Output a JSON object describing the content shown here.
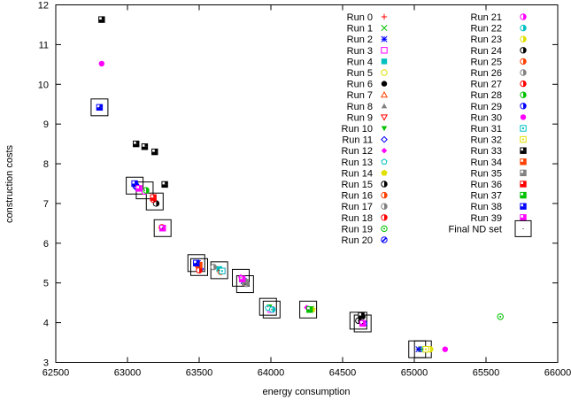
{
  "chart_data": {
    "type": "scatter",
    "title": "",
    "xlabel": "energy consumption",
    "ylabel": "construction costs",
    "xlim": [
      62500,
      66000
    ],
    "ylim": [
      3,
      12
    ],
    "grid": false,
    "legend_position": "top-right",
    "x_ticks": [
      "62500",
      "63000",
      "63500",
      "64000",
      "64500",
      "65000",
      "65500",
      "66000"
    ],
    "y_ticks": [
      "3",
      "4",
      "5",
      "6",
      "7",
      "8",
      "9",
      "10",
      "11",
      "12"
    ],
    "front": [
      [
        62805,
        9.42
      ],
      [
        63050,
        7.45
      ],
      [
        63120,
        7.33
      ],
      [
        63190,
        7.05
      ],
      [
        63245,
        6.38
      ],
      [
        63480,
        5.5
      ],
      [
        63500,
        5.4
      ],
      [
        63640,
        5.32
      ],
      [
        63790,
        5.13
      ],
      [
        63820,
        4.97
      ],
      [
        63980,
        4.4
      ],
      [
        64005,
        4.33
      ],
      [
        64260,
        4.33
      ],
      [
        64610,
        4.05
      ],
      [
        64640,
        3.98
      ],
      [
        65020,
        3.33
      ],
      [
        65060,
        3.33
      ]
    ],
    "series": [
      {
        "name": "Run 0",
        "color": "#ff0000",
        "marker": "plus",
        "points": [
          [
            63485,
            5.45
          ],
          [
            64620,
            4.0
          ],
          [
            65040,
            3.33
          ]
        ]
      },
      {
        "name": "Run 1",
        "color": "#00c000",
        "marker": "cross",
        "points": [
          [
            63500,
            5.4
          ],
          [
            64280,
            4.35
          ],
          [
            65050,
            3.33
          ]
        ]
      },
      {
        "name": "Run 2",
        "color": "#0000ff",
        "marker": "star",
        "points": [
          [
            63490,
            5.5
          ],
          [
            63810,
            5.05
          ],
          [
            65030,
            3.33
          ]
        ]
      },
      {
        "name": "Run 3",
        "color": "#ff00ff",
        "marker": "square-open",
        "points": [
          [
            63660,
            5.3
          ],
          [
            64000,
            4.33
          ]
        ]
      },
      {
        "name": "Run 4",
        "color": "#00c0c0",
        "marker": "square-filled",
        "points": [
          [
            63640,
            5.35
          ],
          [
            65070,
            3.33
          ]
        ]
      },
      {
        "name": "Run 5",
        "color": "#e0e000",
        "marker": "circle-open",
        "points": [
          [
            63800,
            5.1
          ],
          [
            65090,
            3.33
          ]
        ]
      },
      {
        "name": "Run 6",
        "color": "#000000",
        "marker": "circle-filled",
        "points": [
          [
            64640,
            4.15
          ]
        ]
      },
      {
        "name": "Run 7",
        "color": "#ff4000",
        "marker": "triangle-open",
        "points": [
          [
            63820,
            5.0
          ]
        ]
      },
      {
        "name": "Run 8",
        "color": "#808080",
        "marker": "triangle-filled",
        "points": [
          [
            64630,
            4.1
          ]
        ]
      },
      {
        "name": "Run 9",
        "color": "#ff0000",
        "marker": "triangle-down-open",
        "points": [
          [
            63480,
            5.45
          ]
        ]
      },
      {
        "name": "Run 10",
        "color": "#00c000",
        "marker": "triangle-down-filled",
        "points": [
          [
            63990,
            4.4
          ]
        ]
      },
      {
        "name": "Run 11",
        "color": "#0000ff",
        "marker": "diamond-open",
        "points": [
          [
            63060,
            7.4
          ],
          [
            63510,
            5.35
          ]
        ]
      },
      {
        "name": "Run 12",
        "color": "#ff00ff",
        "marker": "diamond-filled",
        "points": [
          [
            63790,
            5.15
          ],
          [
            64250,
            4.38
          ]
        ]
      },
      {
        "name": "Run 13",
        "color": "#00c0c0",
        "marker": "pentagon-open",
        "points": [
          [
            63980,
            4.37
          ]
        ]
      },
      {
        "name": "Run 14",
        "color": "#e0e000",
        "marker": "pentagon-filled",
        "points": [
          [
            64290,
            4.33
          ]
        ]
      },
      {
        "name": "Run 15",
        "color": "#000000",
        "marker": "half-circle",
        "points": [
          [
            64610,
            4.05
          ]
        ]
      },
      {
        "name": "Run 16",
        "color": "#ff4000",
        "marker": "half-circle",
        "points": [
          [
            63650,
            5.28
          ]
        ]
      },
      {
        "name": "Run 17",
        "color": "#808080",
        "marker": "half-circle",
        "points": [
          [
            63830,
            4.98
          ]
        ]
      },
      {
        "name": "Run 18",
        "color": "#ff0000",
        "marker": "half-circle",
        "points": [
          [
            63500,
            5.32
          ]
        ]
      },
      {
        "name": "Run 19",
        "color": "#00c000",
        "marker": "circle-dot",
        "points": [
          [
            65600,
            4.15
          ]
        ]
      },
      {
        "name": "Run 20",
        "color": "#0000ff",
        "marker": "circle-slash",
        "points": [
          [
            64650,
            3.98
          ]
        ]
      },
      {
        "name": "Run 21",
        "color": "#ff00ff",
        "marker": "half-circle",
        "points": [
          [
            63120,
            7.3
          ]
        ]
      },
      {
        "name": "Run 22",
        "color": "#00c0c0",
        "marker": "half-circle",
        "points": [
          [
            64010,
            4.33
          ]
        ]
      },
      {
        "name": "Run 23",
        "color": "#e0e000",
        "marker": "half-circle",
        "points": [
          [
            65110,
            3.33
          ]
        ]
      },
      {
        "name": "Run 24",
        "color": "#000000",
        "marker": "half-circle",
        "points": [
          [
            63200,
            7.0
          ]
        ]
      },
      {
        "name": "Run 25",
        "color": "#ff4000",
        "marker": "half-circle",
        "points": [
          [
            63240,
            6.4
          ]
        ]
      },
      {
        "name": "Run 26",
        "color": "#808080",
        "marker": "half-circle",
        "points": [
          [
            63600,
            5.4
          ]
        ]
      },
      {
        "name": "Run 27",
        "color": "#ff0000",
        "marker": "half-circle",
        "points": [
          [
            63180,
            7.1
          ]
        ]
      },
      {
        "name": "Run 28",
        "color": "#00c000",
        "marker": "half-circle",
        "points": [
          [
            63130,
            7.33
          ]
        ]
      },
      {
        "name": "Run 29",
        "color": "#0000ff",
        "marker": "half-circle",
        "points": [
          [
            63060,
            7.45
          ]
        ]
      },
      {
        "name": "Run 30",
        "color": "#ff00ff",
        "marker": "circle-filled",
        "points": [
          [
            65215,
            3.33
          ],
          [
            62820,
            10.52
          ]
        ]
      },
      {
        "name": "Run 31",
        "color": "#00c0c0",
        "marker": "square-dot",
        "points": [
          [
            63660,
            5.3
          ]
        ]
      },
      {
        "name": "Run 32",
        "color": "#e0e000",
        "marker": "square-dot",
        "points": [
          [
            65080,
            3.33
          ]
        ]
      },
      {
        "name": "Run 33",
        "color": "#000000",
        "marker": "square-half",
        "points": [
          [
            62820,
            11.63
          ],
          [
            63060,
            8.5
          ],
          [
            63120,
            8.43
          ],
          [
            63190,
            8.3
          ],
          [
            63260,
            7.48
          ],
          [
            64630,
            4.18
          ]
        ]
      },
      {
        "name": "Run 34",
        "color": "#ff4000",
        "marker": "square-half",
        "points": [
          [
            63500,
            5.45
          ]
        ]
      },
      {
        "name": "Run 35",
        "color": "#808080",
        "marker": "square-half",
        "points": [
          [
            63820,
            5.02
          ]
        ]
      },
      {
        "name": "Run 36",
        "color": "#ff0000",
        "marker": "square-half",
        "points": [
          [
            63180,
            7.15
          ]
        ]
      },
      {
        "name": "Run 37",
        "color": "#00c000",
        "marker": "square-half",
        "points": [
          [
            64270,
            4.33
          ]
        ]
      },
      {
        "name": "Run 38",
        "color": "#0000ff",
        "marker": "square-half",
        "points": [
          [
            62805,
            9.42
          ],
          [
            63050,
            7.5
          ],
          [
            63480,
            5.5
          ]
        ]
      },
      {
        "name": "Run 39",
        "color": "#ff00ff",
        "marker": "square-half",
        "points": [
          [
            63080,
            7.38
          ],
          [
            63245,
            6.38
          ],
          [
            63800,
            5.1
          ],
          [
            64640,
            3.98
          ]
        ]
      }
    ],
    "final_nd_set": {
      "name": "Final ND set",
      "marker": "large-open-square"
    }
  }
}
